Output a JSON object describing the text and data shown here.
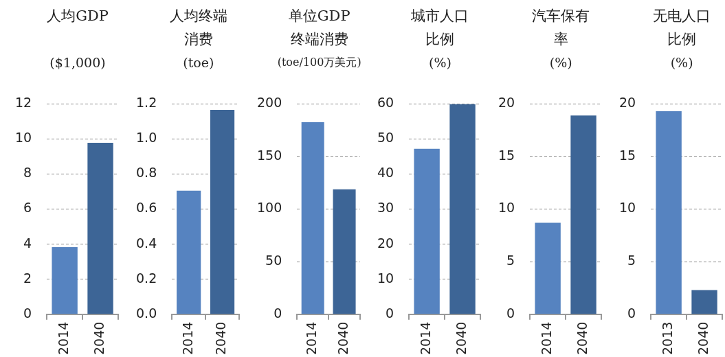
{
  "chart_data": [
    {
      "type": "bar",
      "title": "人均GDP",
      "subtitle": "($1,000)",
      "categories": [
        "2014",
        "2040"
      ],
      "values": [
        3.83,
        9.78
      ],
      "colors": [
        "#5683c0",
        "#3d6596"
      ],
      "ylim": [
        0,
        12
      ],
      "yticks": [
        0,
        2,
        4,
        6,
        8,
        10,
        12
      ],
      "grid": "y"
    },
    {
      "type": "bar",
      "title": "人均终端消费",
      "subtitle": "(toe)",
      "categories": [
        "2014",
        "2040"
      ],
      "values": [
        0.705,
        1.166
      ],
      "colors": [
        "#5683c0",
        "#3d6596"
      ],
      "ylim": [
        0,
        1.2
      ],
      "yticks": [
        {
          "value": 0,
          "label": "0.0"
        },
        {
          "value": 0.2,
          "label": "0.2"
        },
        {
          "value": 0.4,
          "label": "0.4"
        },
        {
          "value": 0.6,
          "label": "0.6"
        },
        {
          "value": 0.8,
          "label": "0.8"
        },
        {
          "value": 1,
          "label": "1.0"
        },
        {
          "value": 1.2,
          "label": "1.2"
        }
      ],
      "grid": "y"
    },
    {
      "type": "bar",
      "title": "单位GDP终端消费",
      "subtitle": "(toe/100万美元)",
      "categories": [
        "2014",
        "2040"
      ],
      "values": [
        182.7,
        118.8
      ],
      "colors": [
        "#5683c0",
        "#3d6596"
      ],
      "ylim": [
        0,
        200
      ],
      "yticks": [
        0,
        50,
        100,
        150,
        200
      ],
      "grid": "y"
    },
    {
      "type": "bar",
      "title": "城市人口比例",
      "subtitle": "(%)",
      "categories": [
        "2014",
        "2040"
      ],
      "values": [
        47.2,
        60
      ],
      "colors": [
        "#5683c0",
        "#3d6596"
      ],
      "ylim": [
        0,
        60
      ],
      "yticks": [
        0,
        10,
        20,
        30,
        40,
        50,
        60
      ],
      "grid": "y"
    },
    {
      "type": "bar",
      "title": "汽车保有率",
      "subtitle": "(%)",
      "categories": [
        "2014",
        "2040"
      ],
      "values": [
        8.7,
        18.9
      ],
      "colors": [
        "#5683c0",
        "#3d6596"
      ],
      "ylim": [
        0,
        20
      ],
      "yticks": [
        0,
        5,
        10,
        15,
        20
      ],
      "grid": "y"
    },
    {
      "type": "bar",
      "title": "无电人口比例",
      "subtitle": "(%)",
      "categories": [
        "2013",
        "2040"
      ],
      "values": [
        19.3,
        2.3
      ],
      "colors": [
        "#5683c0",
        "#3d6596"
      ],
      "ylim": [
        0,
        20
      ],
      "yticks": [
        0,
        5,
        10,
        15,
        20
      ],
      "grid": "y"
    }
  ]
}
